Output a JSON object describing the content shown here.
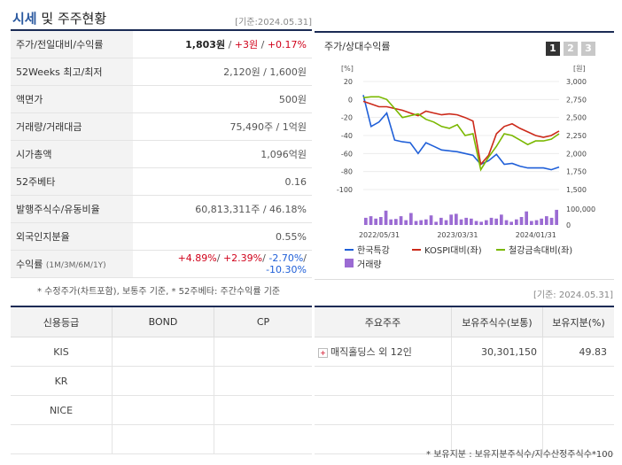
{
  "header": {
    "title_accent": "시세",
    "title_rest": "및 주주현황",
    "basis": "[기준:2024.05.31]"
  },
  "quote_rows": {
    "price": {
      "label": "주가/전일대비/수익률",
      "price": "1,803원",
      "sep1": " / ",
      "change": "+3원",
      "sep2": " / ",
      "rate": "+0.17%"
    },
    "week52": {
      "label": "52Weeks 최고/최저",
      "value": "2,120원 / 1,600원"
    },
    "par": {
      "label": "액면가",
      "value": "500원"
    },
    "volume": {
      "label": "거래량/거래대금",
      "value": "75,490주 / 1억원"
    },
    "mcap": {
      "label": "시가총액",
      "value": "1,096억원"
    },
    "beta": {
      "label": "52주베타",
      "value": "0.16"
    },
    "shares": {
      "label": "발행주식수/유동비율",
      "value": "60,813,311주 / 46.18%"
    },
    "foreign": {
      "label": "외국인지분율",
      "value": "0.55%"
    },
    "returns": {
      "label": "수익률",
      "label_small": "(1M/3M/6M/1Y)",
      "r1": "+4.89%",
      "r2": "+2.39%",
      "r3": "-2.70%",
      "r4": "-10.30%",
      "sep": "/"
    }
  },
  "note1": "* 수정주가(차트포함), 보통주 기준, * 52주베타: 주간수익률 기준",
  "chart_panel": {
    "title": "주가/상대수익률",
    "buttons": [
      "1",
      "2",
      "3"
    ],
    "active_button": "1"
  },
  "chart_data": {
    "type": "line",
    "left_axis": {
      "unit": "[%]",
      "ticks": [
        20,
        0,
        -20,
        -40,
        -60,
        -80,
        -100
      ],
      "ylim": [
        -100,
        20
      ]
    },
    "right_axis": {
      "unit": "[원]",
      "ticks": [
        "3,000",
        "2,750",
        "2,500",
        "2,250",
        "2,000",
        "1,750",
        "1,500"
      ],
      "ylim": [
        1500,
        3000
      ]
    },
    "volume_axis": {
      "ticks": [
        "100,000",
        "0"
      ],
      "ylim": [
        0,
        100000
      ]
    },
    "x_ticks": [
      "2022/05/31",
      "2023/03/31",
      "2024/01/31"
    ],
    "x_tick_index": [
      0,
      10,
      20
    ],
    "series": [
      {
        "name": "한국특강",
        "color": "#1f5fd8",
        "values": [
          5,
          -30,
          -25,
          -15,
          -45,
          -47,
          -48,
          -60,
          -48,
          -52,
          -56,
          -57,
          -58,
          -60,
          -62,
          -72,
          -68,
          -61,
          -72,
          -71,
          -74,
          -76,
          -76,
          -76,
          -78,
          -75
        ]
      },
      {
        "name": "KOSPI대비(좌)",
        "color": "#cc2a1a",
        "values": [
          -2,
          -5,
          -8,
          -8,
          -10,
          -12,
          -15,
          -18,
          -13,
          -15,
          -17,
          -16,
          -17,
          -20,
          -24,
          -72,
          -62,
          -38,
          -30,
          -27,
          -32,
          -36,
          -40,
          -42,
          -40,
          -35
        ]
      },
      {
        "name": "철강금속대비(좌)",
        "color": "#7ab800",
        "values": [
          2,
          3,
          3,
          0,
          -10,
          -20,
          -18,
          -16,
          -22,
          -25,
          -30,
          -32,
          -28,
          -40,
          -38,
          -78,
          -64,
          -52,
          -38,
          -40,
          -45,
          -50,
          -46,
          -46,
          -44,
          -38
        ]
      }
    ],
    "volume": {
      "name": "거래량",
      "color": "#9b6bd3",
      "values": [
        45000,
        55000,
        40000,
        50000,
        90000,
        35000,
        38000,
        55000,
        30000,
        75000,
        25000,
        30000,
        35000,
        60000,
        20000,
        45000,
        30000,
        65000,
        70000,
        35000,
        45000,
        40000,
        25000,
        20000,
        30000,
        45000,
        40000,
        65000,
        30000,
        20000,
        35000,
        50000,
        85000,
        25000,
        30000,
        40000,
        55000,
        45000,
        95000
      ]
    }
  },
  "basis2": "[기준: 2024.05.31]",
  "credit_table": {
    "headers": [
      "신용등급",
      "BOND",
      "CP"
    ],
    "rows": [
      [
        "KIS",
        "",
        ""
      ],
      [
        "KR",
        "",
        ""
      ],
      [
        "NICE",
        "",
        ""
      ],
      [
        "",
        "",
        ""
      ]
    ]
  },
  "holder_table": {
    "headers": [
      "주요주주",
      "보유주식수(보통)",
      "보유지분(%)"
    ],
    "rows": [
      [
        "매직홀딩스 외 12인",
        "30,301,150",
        "49.83"
      ],
      [
        "",
        "",
        ""
      ],
      [
        "",
        "",
        ""
      ],
      [
        "",
        "",
        ""
      ]
    ]
  },
  "note2": "* 보유지분 : 보유지분주식수/지수산정주식수*100"
}
